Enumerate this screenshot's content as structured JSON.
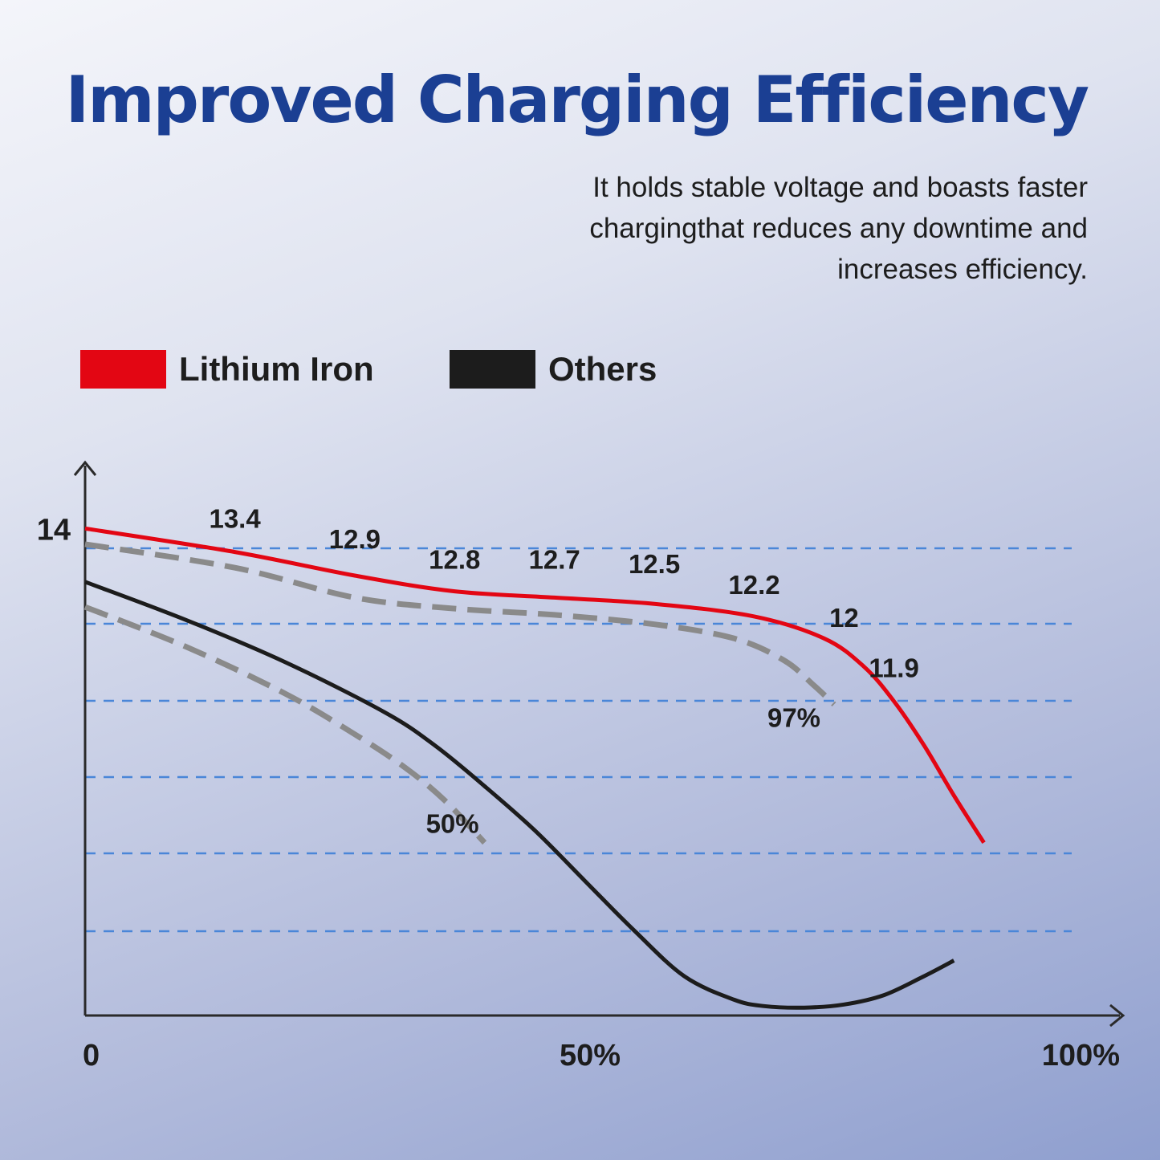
{
  "title": "Improved Charging Efficiency",
  "subtitle": "It holds stable voltage and boasts faster chargingthat reduces any downtime and increases efficiency.",
  "legend": [
    {
      "label": "Lithium Iron",
      "color": "#e30613"
    },
    {
      "label": "Others",
      "color": "#1c1c1c"
    }
  ],
  "chart_data": {
    "type": "line",
    "x_ticks": [
      {
        "label": "0",
        "value": 0
      },
      {
        "label": "50%",
        "value": 50
      },
      {
        "label": "100%",
        "value": 100
      }
    ],
    "y_ticks": [
      {
        "label": "14",
        "value": 14
      }
    ],
    "xlim": [
      0,
      100
    ],
    "ylim": [
      10.9,
      14.4
    ],
    "grid": "horizontal-dashed",
    "series": [
      {
        "name": "Lithium Iron",
        "color": "#e30613",
        "style": "solid",
        "x": [
          0,
          15,
          27,
          37,
          47,
          57,
          67,
          74,
          78,
          81,
          84,
          87,
          90
        ],
        "y": [
          14,
          13.85,
          13.7,
          13.6,
          13.56,
          13.52,
          13.44,
          13.3,
          13.12,
          12.9,
          12.62,
          12.3,
          12.0
        ],
        "point_labels": [
          {
            "label": "13.4",
            "x": 15,
            "y": 13.85
          },
          {
            "label": "12.9",
            "x": 27,
            "y": 13.7
          },
          {
            "label": "12.8",
            "x": 37,
            "y": 13.6
          },
          {
            "label": "12.7",
            "x": 47,
            "y": 13.56
          },
          {
            "label": "12.5",
            "x": 57,
            "y": 13.52
          },
          {
            "label": "12.2",
            "x": 67,
            "y": 13.44
          },
          {
            "label": "12",
            "x": 76,
            "y": 13.22
          },
          {
            "label": "11.9",
            "x": 81,
            "y": 12.9
          }
        ]
      },
      {
        "name": "Others",
        "color": "#1c1c1c",
        "style": "solid",
        "x": [
          0,
          10,
          20,
          30,
          35,
          40,
          45,
          50,
          55,
          60,
          65,
          68,
          72,
          76,
          80,
          84,
          87
        ],
        "y": [
          13.66,
          13.42,
          13.15,
          12.83,
          12.62,
          12.36,
          12.08,
          11.76,
          11.44,
          11.15,
          11.0,
          10.96,
          10.95,
          10.97,
          11.03,
          11.15,
          11.25
        ],
        "point_labels": []
      },
      {
        "name": "",
        "color": "#8a8a8a",
        "style": "dashed",
        "x": [
          0,
          15,
          27,
          37,
          47,
          57,
          65,
          70,
          73,
          75
        ],
        "y": [
          13.9,
          13.75,
          13.56,
          13.49,
          13.45,
          13.39,
          13.3,
          13.16,
          13.0,
          12.88
        ],
        "point_labels": [
          {
            "label": "97%",
            "x": 75,
            "y": 12.88
          }
        ]
      },
      {
        "name": "",
        "color": "#8a8a8a",
        "style": "dashed",
        "x": [
          0,
          10,
          20,
          27,
          32,
          36,
          40
        ],
        "y": [
          13.5,
          13.25,
          12.95,
          12.69,
          12.48,
          12.27,
          12.0
        ],
        "point_labels": [
          {
            "label": "50%",
            "x": 40,
            "y": 12.0
          }
        ]
      }
    ]
  }
}
